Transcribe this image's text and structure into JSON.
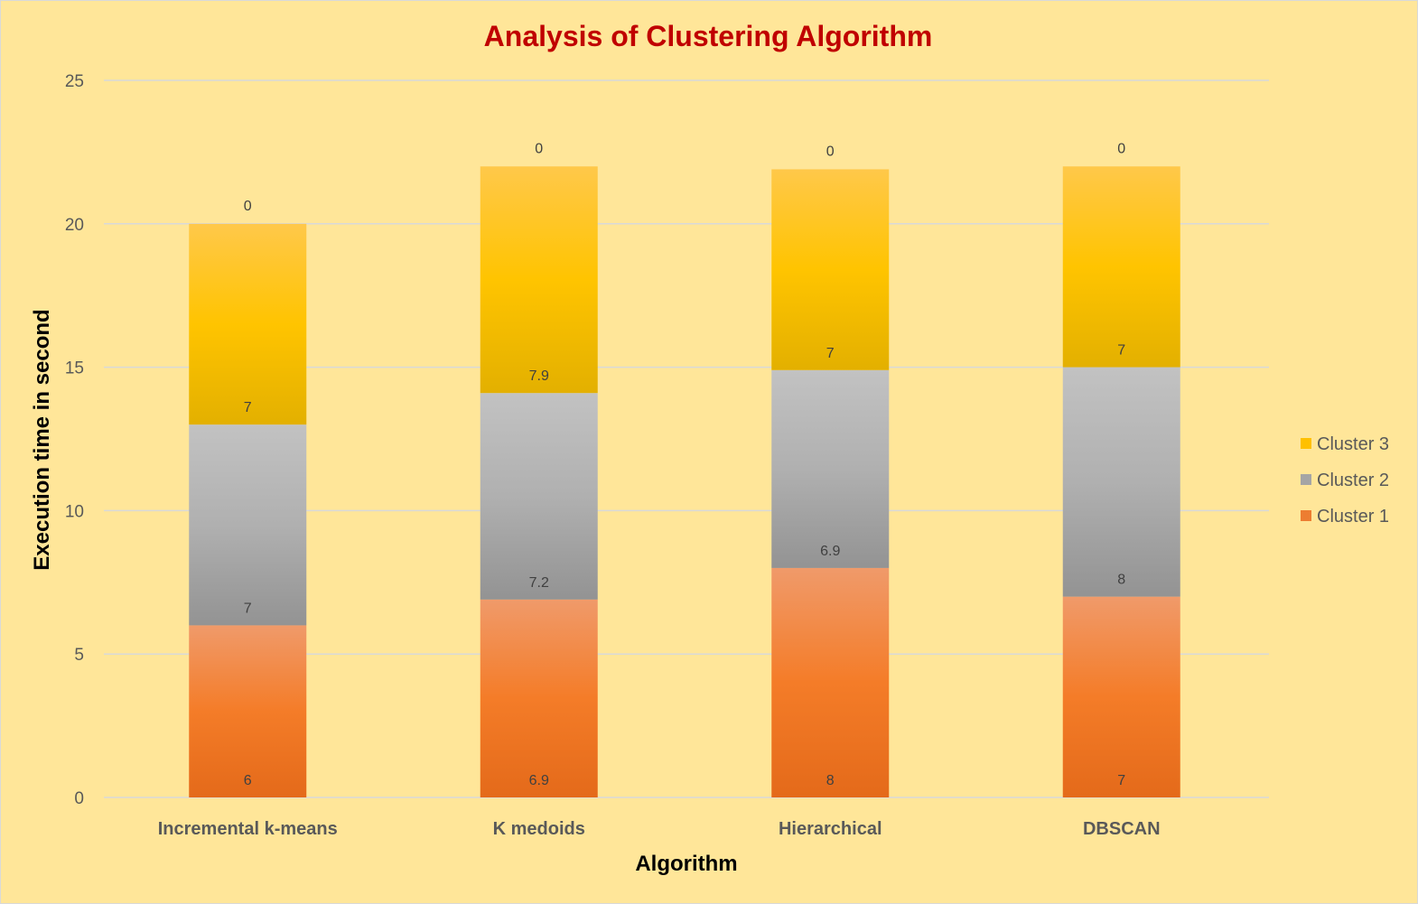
{
  "chart_data": {
    "type": "bar",
    "stacked": true,
    "title": "Analysis of Clustering Algorithm",
    "xlabel": "Algorithm",
    "ylabel": "Execution time in second",
    "ylim": [
      0,
      25
    ],
    "yticks": [
      0,
      5,
      10,
      15,
      20,
      25
    ],
    "grid": true,
    "legend_position": "right",
    "categories": [
      "Incremental k-means",
      "K medoids",
      "Hierarchical",
      "DBSCAN"
    ],
    "series": [
      {
        "name": "Cluster 1",
        "color": "#ed7d31",
        "values": [
          6,
          6.9,
          8,
          7
        ],
        "labels": [
          "6",
          "6.9",
          "8",
          "7"
        ]
      },
      {
        "name": "Cluster 2",
        "color": "#a5a5a5",
        "values": [
          7,
          7.2,
          6.9,
          8
        ],
        "labels": [
          "7",
          "7.2",
          "6.9",
          "8"
        ]
      },
      {
        "name": "Cluster 3",
        "color": "#ffc000",
        "values": [
          7,
          7.9,
          7,
          7
        ],
        "labels": [
          "7",
          "7.9",
          "7",
          "7"
        ]
      }
    ],
    "top_labels": [
      "0",
      "0",
      "0",
      "0"
    ],
    "colors": {
      "title": "#c00000",
      "background": "#ffe699",
      "grid": "#d9d9d9"
    }
  }
}
